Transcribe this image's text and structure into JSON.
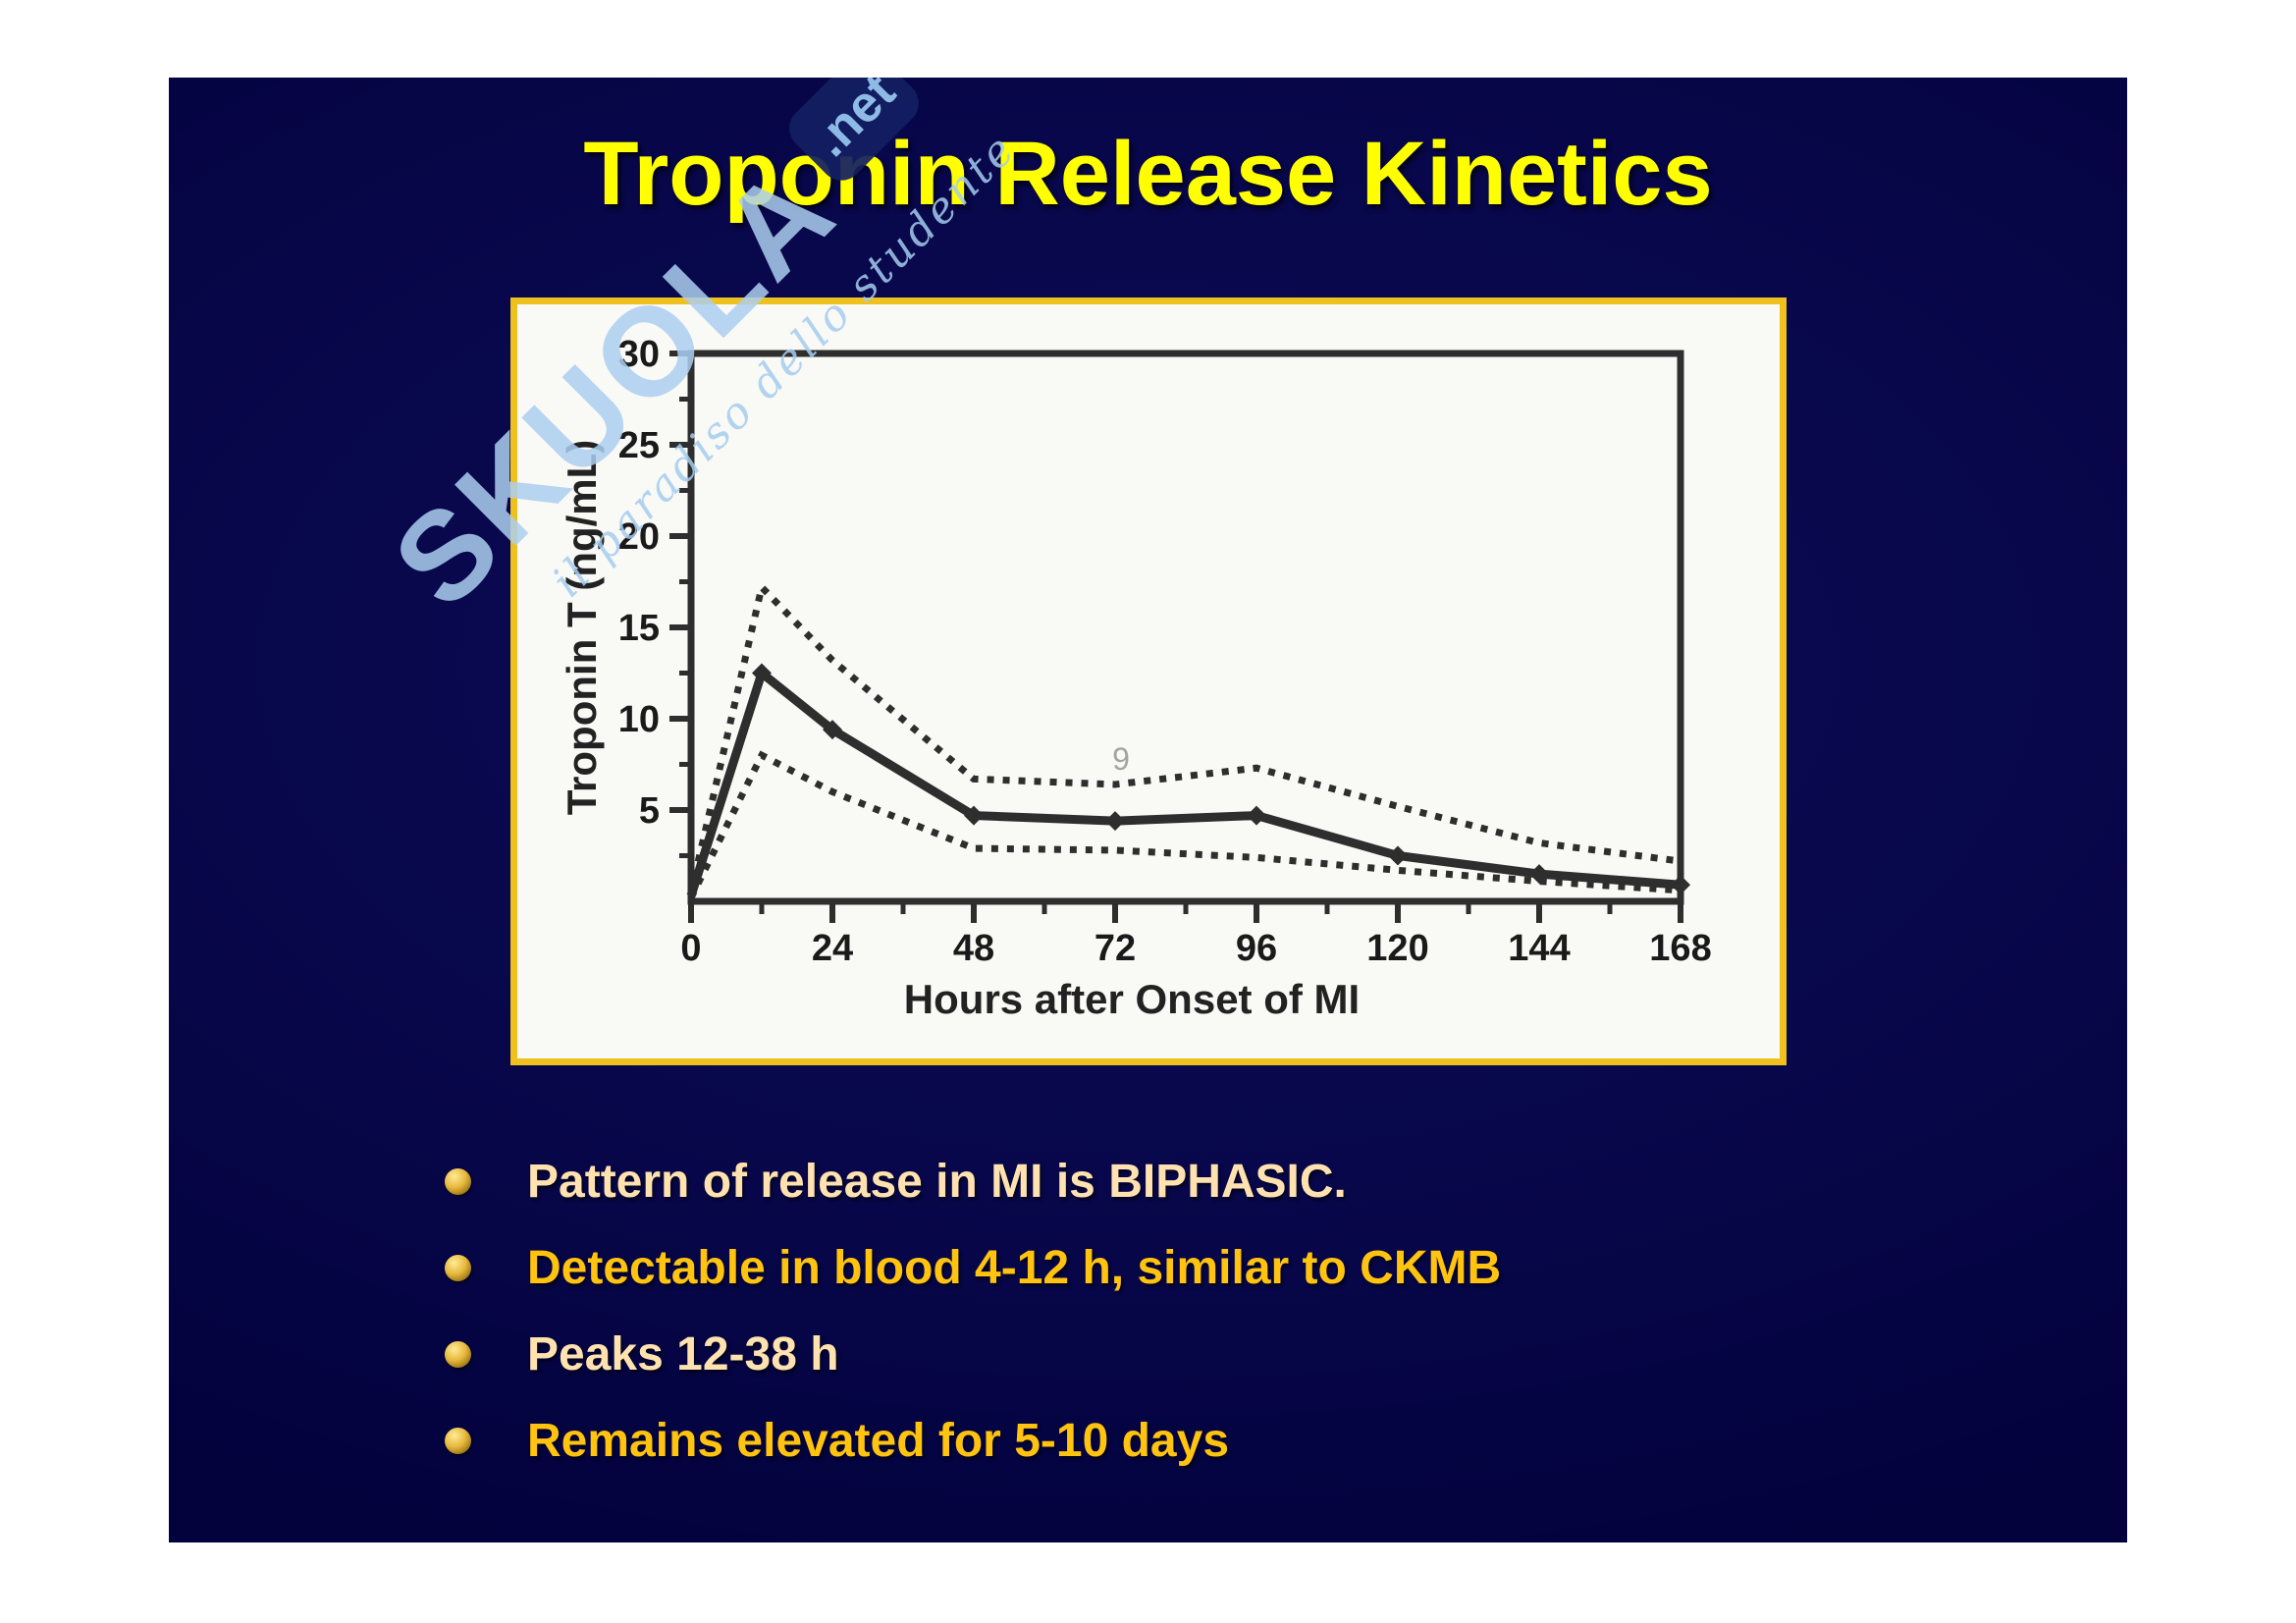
{
  "page": {
    "background": "#ffffff"
  },
  "slide": {
    "title": "Troponin Release Kinetics",
    "bullets": [
      {
        "text": "Pattern of release in MI is BIPHASIC.",
        "color": "wheat"
      },
      {
        "text": "Detectable in blood 4-12 h, similar to CKMB",
        "color": "gold"
      },
      {
        "text": "Peaks 12-38 h",
        "color": "wheat"
      },
      {
        "text": "Remains elevated for 5-10 days",
        "color": "gold"
      }
    ]
  },
  "watermark": {
    "brand": "SKUOLA",
    "suffix": ".net",
    "tagline": "il paradiso dello studente"
  },
  "colors": {
    "slide_bg_center": "#0d0c55",
    "slide_bg_edge": "#020238",
    "title": "#ffff00",
    "wheat": "#ffe2b0",
    "gold": "#ffc310",
    "frame": "#efc11e",
    "chart_bg": "#f9f9f6",
    "ink": "#2e2e2e",
    "tick_label": "#1a1a1a",
    "watermark_blue": "#a9cfee"
  },
  "chart_data": {
    "type": "line",
    "title": "",
    "xlabel": "Hours after Onset of MI",
    "ylabel": "Troponin T (ng/mL)",
    "x": [
      0,
      12,
      24,
      48,
      72,
      96,
      120,
      144,
      168
    ],
    "x_ticks": [
      0,
      24,
      48,
      72,
      96,
      120,
      144,
      168
    ],
    "x_minor_ticks": [
      12,
      36,
      60,
      84,
      108,
      132,
      156
    ],
    "y_ticks": [
      5,
      10,
      15,
      20,
      25,
      30
    ],
    "y_minor_ticks": [
      2.5,
      7.5,
      12.5,
      17.5,
      22.5,
      27.5
    ],
    "xlim": [
      0,
      168
    ],
    "ylim": [
      0,
      30
    ],
    "grid": false,
    "legend_position": "none",
    "series": [
      {
        "name": "upper bound (dotted)",
        "style": "dotted",
        "markers": false,
        "values": [
          0.5,
          17.2,
          13.2,
          6.7,
          6.4,
          7.3,
          5.2,
          3.2,
          2.2
        ]
      },
      {
        "name": "median (solid with markers)",
        "style": "solid",
        "markers": true,
        "values": [
          0.3,
          12.5,
          9.4,
          4.7,
          4.4,
          4.7,
          2.5,
          1.5,
          0.9
        ]
      },
      {
        "name": "lower bound (dotted)",
        "style": "dotted",
        "markers": false,
        "values": [
          0.2,
          8.0,
          6.0,
          2.9,
          2.8,
          2.4,
          1.7,
          1.1,
          0.6
        ]
      }
    ],
    "noise_glyph": {
      "text": "9",
      "x": 73,
      "y": 7.2
    }
  }
}
